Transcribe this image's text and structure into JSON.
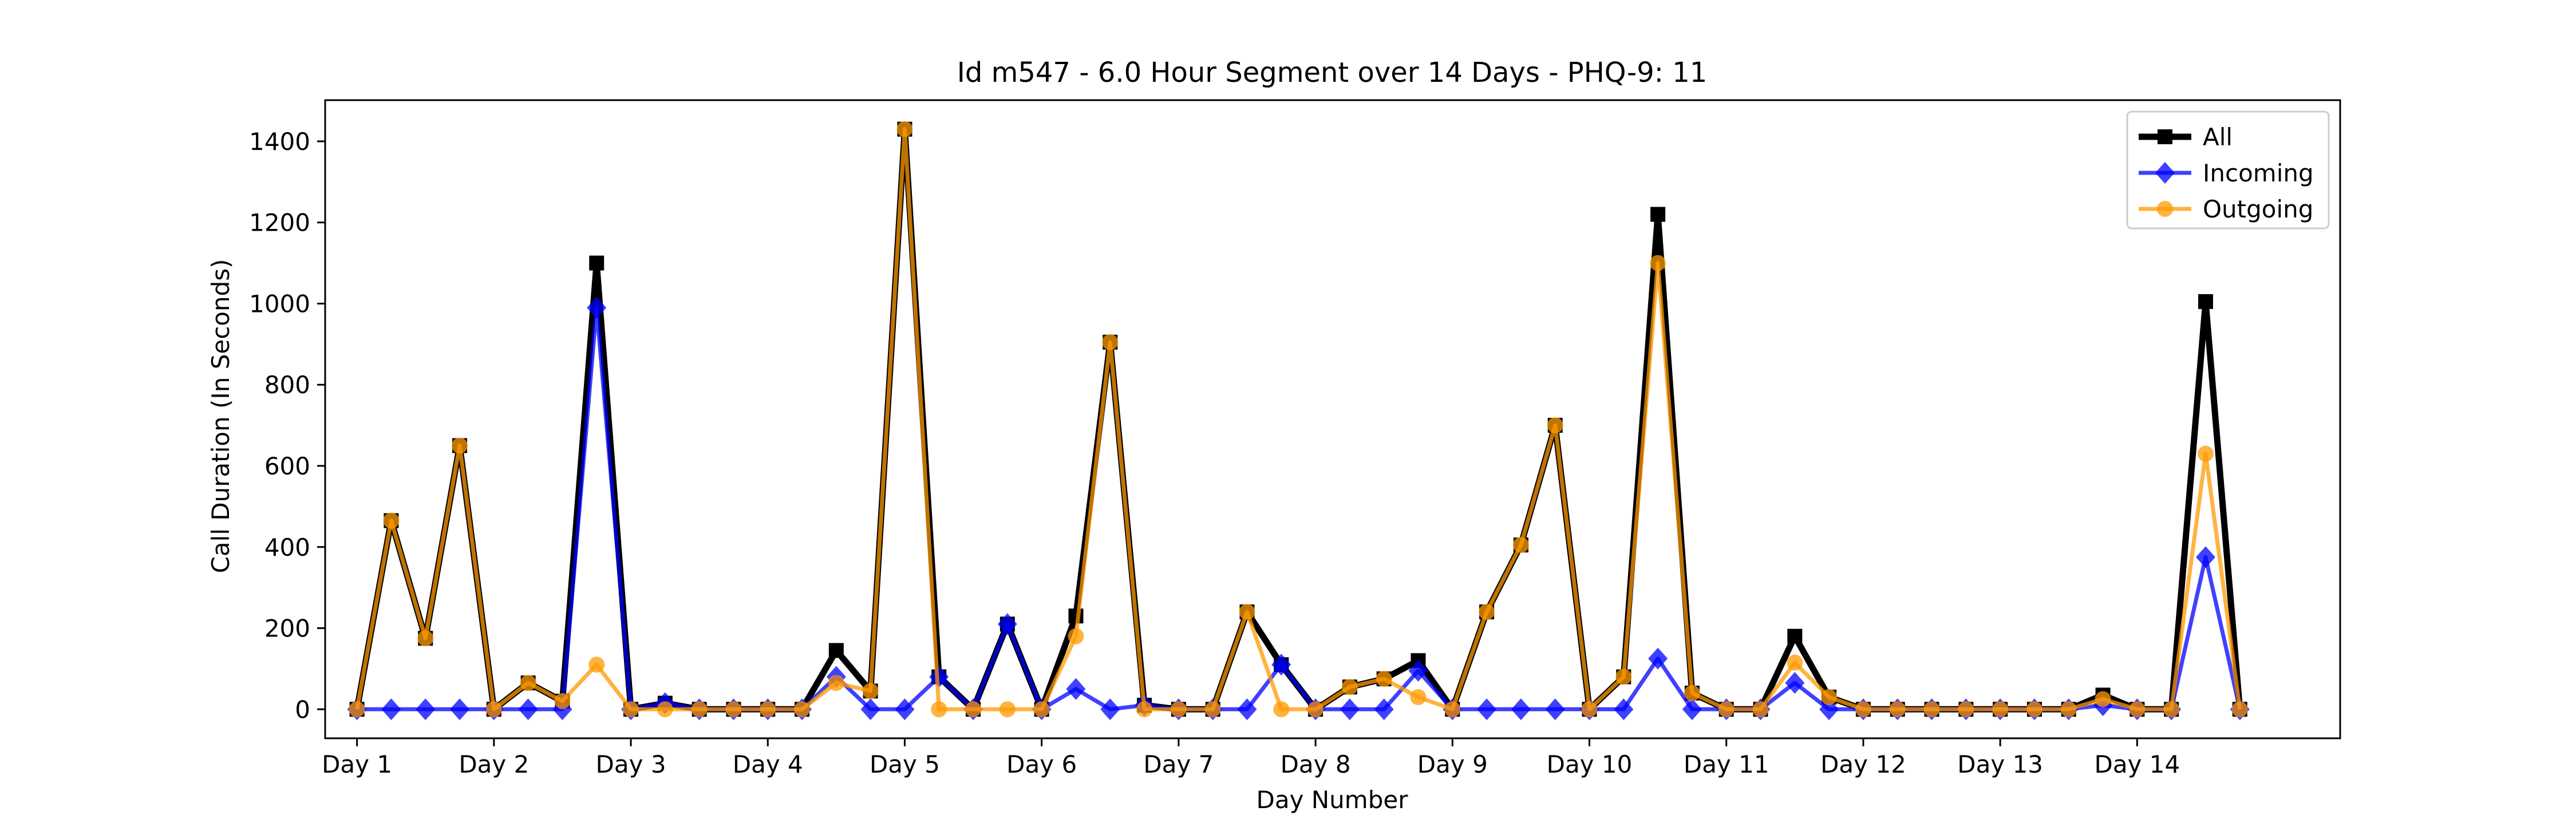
{
  "chart_data": {
    "type": "line",
    "title": "Id m547 - 6.0 Hour Segment over 14 Days - PHQ-9: 11",
    "xlabel": "Day Number",
    "ylabel": "Call Duration (In Seconds)",
    "x_tick_labels": [
      "Day 1",
      "Day 2",
      "Day 3",
      "Day 4",
      "Day 5",
      "Day 6",
      "Day 7",
      "Day 8",
      "Day 9",
      "Day 10",
      "Day 11",
      "Day 12",
      "Day 13",
      "Day 14"
    ],
    "y_ticks": [
      0,
      200,
      400,
      600,
      800,
      1000,
      1200,
      1400
    ],
    "xlim": [
      -0.2325,
      14.4825
    ],
    "ylim": [
      -71.5,
      1501.5
    ],
    "grid": false,
    "legend_position": "top-right",
    "series": [
      {
        "name": "All",
        "color": "#000000",
        "marker": "square",
        "x": [
          0,
          0.25,
          0.5,
          0.75,
          1,
          1.25,
          1.5,
          1.75,
          2,
          2.25,
          2.5,
          2.75,
          3,
          3.25,
          3.5,
          3.75,
          4,
          4.25,
          4.5,
          4.75,
          5,
          5.25,
          5.5,
          5.75,
          6,
          6.25,
          6.5,
          6.75,
          7,
          7.25,
          7.5,
          7.75,
          8,
          8.25,
          8.5,
          8.75,
          9,
          9.25,
          9.5,
          9.75,
          10,
          10.25,
          10.5,
          10.75,
          11,
          11.25,
          11.5,
          11.75,
          12,
          12.25,
          12.5,
          12.75,
          13,
          13.25,
          13.5,
          13.75
        ],
        "values": [
          0,
          465,
          175,
          650,
          0,
          65,
          20,
          1100,
          0,
          15,
          0,
          0,
          0,
          0,
          145,
          45,
          1430,
          80,
          0,
          210,
          0,
          230,
          905,
          10,
          0,
          0,
          240,
          110,
          0,
          55,
          75,
          120,
          0,
          240,
          405,
          700,
          0,
          80,
          1220,
          40,
          0,
          0,
          180,
          30,
          0,
          0,
          0,
          0,
          0,
          0,
          0,
          35,
          0,
          0,
          1005,
          0
        ]
      },
      {
        "name": "Incoming",
        "color": "#0000ff",
        "marker": "diamond",
        "x": [
          0,
          0.25,
          0.5,
          0.75,
          1,
          1.25,
          1.5,
          1.75,
          2,
          2.25,
          2.5,
          2.75,
          3,
          3.25,
          3.5,
          3.75,
          4,
          4.25,
          4.5,
          4.75,
          5,
          5.25,
          5.5,
          5.75,
          6,
          6.25,
          6.5,
          6.75,
          7,
          7.25,
          7.5,
          7.75,
          8,
          8.25,
          8.5,
          8.75,
          9,
          9.25,
          9.5,
          9.75,
          10,
          10.25,
          10.5,
          10.75,
          11,
          11.25,
          11.5,
          11.75,
          12,
          12.25,
          12.5,
          12.75,
          13,
          13.25,
          13.5,
          13.75
        ],
        "values": [
          0,
          0,
          0,
          0,
          0,
          0,
          0,
          990,
          0,
          15,
          0,
          0,
          0,
          0,
          80,
          0,
          0,
          80,
          0,
          210,
          0,
          50,
          0,
          10,
          0,
          0,
          0,
          110,
          0,
          0,
          0,
          95,
          0,
          0,
          0,
          0,
          0,
          0,
          125,
          0,
          0,
          0,
          65,
          0,
          0,
          0,
          0,
          0,
          0,
          0,
          0,
          10,
          0,
          0,
          375,
          0
        ]
      },
      {
        "name": "Outgoing",
        "color": "#ff9900",
        "marker": "circle",
        "x": [
          0,
          0.25,
          0.5,
          0.75,
          1,
          1.25,
          1.5,
          1.75,
          2,
          2.25,
          2.5,
          2.75,
          3,
          3.25,
          3.5,
          3.75,
          4,
          4.25,
          4.5,
          4.75,
          5,
          5.25,
          5.5,
          5.75,
          6,
          6.25,
          6.5,
          6.75,
          7,
          7.25,
          7.5,
          7.75,
          8,
          8.25,
          8.5,
          8.75,
          9,
          9.25,
          9.5,
          9.75,
          10,
          10.25,
          10.5,
          10.75,
          11,
          11.25,
          11.5,
          11.75,
          12,
          12.25,
          12.5,
          12.75,
          13,
          13.25,
          13.5,
          13.75
        ],
        "values": [
          0,
          465,
          175,
          650,
          0,
          65,
          20,
          110,
          0,
          0,
          0,
          0,
          0,
          0,
          65,
          45,
          1430,
          0,
          0,
          0,
          0,
          180,
          905,
          0,
          0,
          0,
          240,
          0,
          0,
          55,
          75,
          30,
          0,
          240,
          405,
          700,
          0,
          80,
          1100,
          40,
          0,
          0,
          115,
          30,
          0,
          0,
          0,
          0,
          0,
          0,
          0,
          25,
          0,
          0,
          630,
          0
        ]
      }
    ]
  }
}
